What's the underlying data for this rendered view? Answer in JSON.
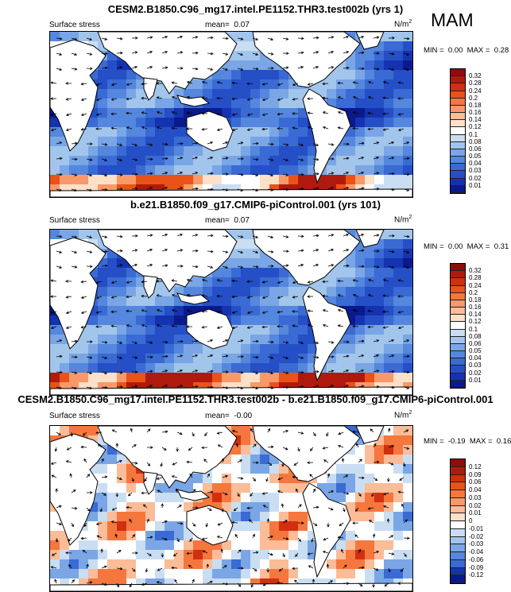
{
  "season": "MAM",
  "panels": [
    {
      "title": "CESM2.B1850.C96_mg17.intel.PE1152.THR3.test002b (yrs 1)",
      "variable": "Surface stress",
      "mean_label": "mean=",
      "mean_value": "0.07",
      "units": "N/m",
      "units_exp": "2",
      "min_label": "MIN =",
      "min_value": "0.00",
      "max_label": "MAX =",
      "max_value": "0.28",
      "colorbar_ticks": [
        "0.32",
        "0.28",
        "0.24",
        "0.2",
        "0.18",
        "0.16",
        "0.14",
        "0.12",
        "0.1",
        "0.08",
        "0.06",
        "0.05",
        "0.04",
        "0.03",
        "0.02",
        "0.01"
      ],
      "colorbar_colors": [
        "#8e0d0d",
        "#b01a0e",
        "#d0300f",
        "#ea5219",
        "#f5773e",
        "#f9996a",
        "#fbbc98",
        "#fde0c8",
        "#ffffff",
        "#c9def2",
        "#a2c5ec",
        "#7aa6e6",
        "#5487dd",
        "#3a6ad4",
        "#254fc6",
        "#1533b0",
        "#0a1a8c"
      ]
    },
    {
      "title": "b.e21.B1850.f09_g17.CMIP6-piControl.001 (yrs 101)",
      "variable": "Surface stress",
      "mean_label": "mean=",
      "mean_value": "0.07",
      "units": "N/m",
      "units_exp": "2",
      "min_label": "MIN =",
      "min_value": "0.00",
      "max_label": "MAX =",
      "max_value": "0.31",
      "colorbar_ticks": [
        "0.32",
        "0.28",
        "0.24",
        "0.2",
        "0.18",
        "0.16",
        "0.14",
        "0.12",
        "0.1",
        "0.08",
        "0.06",
        "0.05",
        "0.04",
        "0.03",
        "0.02",
        "0.01"
      ],
      "colorbar_colors": [
        "#8e0d0d",
        "#b01a0e",
        "#d0300f",
        "#ea5219",
        "#f5773e",
        "#f9996a",
        "#fbbc98",
        "#fde0c8",
        "#ffffff",
        "#c9def2",
        "#a2c5ec",
        "#7aa6e6",
        "#5487dd",
        "#3a6ad4",
        "#254fc6",
        "#1533b0",
        "#0a1a8c"
      ]
    },
    {
      "title": "CESM2.B1850.C96_mg17.intel.PE1152.THR3.test002b - b.e21.B1850.f09_g17.CMIP6-piControl.001",
      "variable": "Surface stress",
      "mean_label": "mean=",
      "mean_value": "-0.00",
      "units": "N/m",
      "units_exp": "2",
      "min_label": "MIN =",
      "min_value": "-0.19",
      "max_label": "MAX =",
      "max_value": "0.16",
      "colorbar_ticks": [
        "0.12",
        "0.09",
        "0.06",
        "0.04",
        "0.03",
        "0.02",
        "0.01",
        "0",
        "-0.01",
        "-0.02",
        "-0.03",
        "-0.04",
        "-0.06",
        "-0.09",
        "-0.12"
      ],
      "colorbar_colors": [
        "#8e0d0d",
        "#b01a0e",
        "#d0300f",
        "#ea5219",
        "#f5773e",
        "#f9996a",
        "#fbbc98",
        "#fde0c8",
        "#ffffff",
        "#c9def2",
        "#a2c5ec",
        "#7aa6e6",
        "#5487dd",
        "#3a6ad4",
        "#1533b0",
        "#0a1a8c"
      ]
    }
  ]
}
